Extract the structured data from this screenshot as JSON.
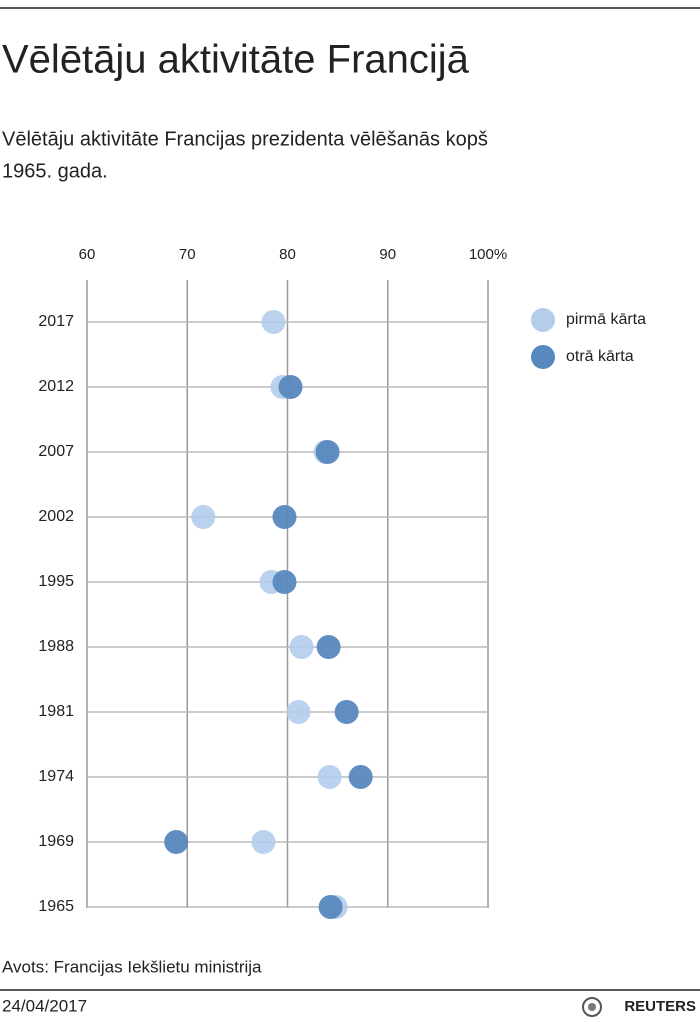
{
  "chart_data": {
    "type": "dot",
    "title": "Vēlētāju aktivitāte Francijā",
    "subtitle": [
      "Vēlētāju aktivitāte Francijas prezidenta vēlēšanās kopš",
      "1965. gada."
    ],
    "categories": [
      "2017",
      "2012",
      "2007",
      "2002",
      "1995",
      "1988",
      "1981",
      "1974",
      "1969",
      "1965"
    ],
    "series": [
      {
        "name": "pirmā kārta",
        "color": "#b3cdeb",
        "values": [
          78.6,
          79.5,
          83.8,
          71.6,
          78.4,
          81.4,
          81.1,
          84.2,
          77.6,
          84.8
        ]
      },
      {
        "name": "otrā kārta",
        "color": "#5788be",
        "values": [
          null,
          80.3,
          84.0,
          79.7,
          79.7,
          84.1,
          85.9,
          87.3,
          68.9,
          84.3
        ]
      }
    ],
    "xlim": [
      60,
      100
    ],
    "xticks": [
      60,
      70,
      80,
      90,
      {
        "value": 100,
        "label": "100%"
      }
    ],
    "grid": true,
    "legend": "right",
    "source": "Avots: Francijas Iekšlietu ministrija",
    "date": "24/04/2017",
    "logo": "REUTERS"
  }
}
